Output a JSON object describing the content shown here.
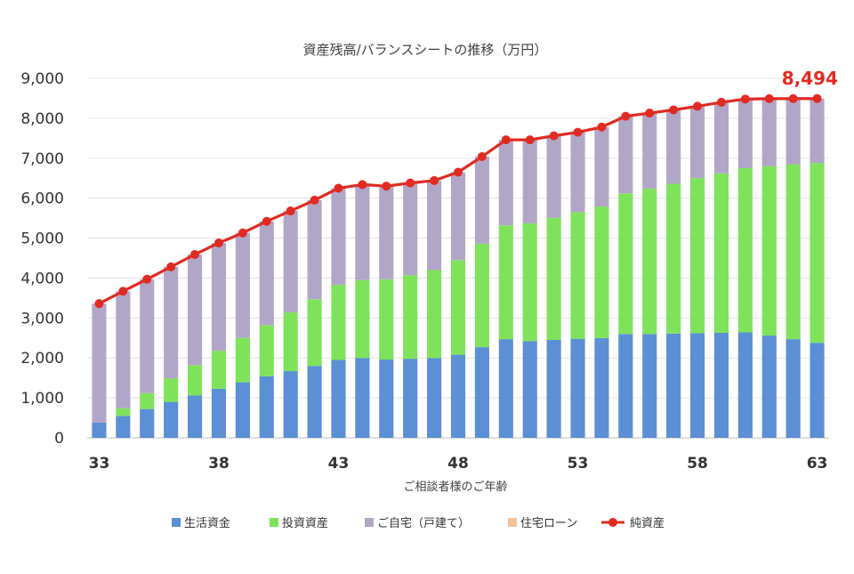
{
  "chart_data": {
    "type": "bar",
    "title": "資産残高/バランスシートの推移（万円）",
    "xlabel": "ご相談者様のご年齢",
    "ylabel": "",
    "ylim": [
      0,
      9000
    ],
    "yticks": [
      "0",
      "1,000",
      "2,000",
      "3,000",
      "4,000",
      "5,000",
      "6,000",
      "7,000",
      "8,000",
      "9,000"
    ],
    "ytick_values": [
      0,
      1000,
      2000,
      3000,
      4000,
      5000,
      6000,
      7000,
      8000,
      9000
    ],
    "categories": [
      33,
      34,
      35,
      36,
      37,
      38,
      39,
      40,
      41,
      42,
      43,
      44,
      45,
      46,
      47,
      48,
      49,
      50,
      51,
      52,
      53,
      54,
      55,
      56,
      57,
      58,
      59,
      60,
      61,
      62,
      63
    ],
    "xtick_labels": [
      "33",
      "38",
      "43",
      "48",
      "53",
      "58",
      "63"
    ],
    "grid": true,
    "legend_position": "bottom",
    "stacked": true,
    "series": [
      {
        "name": "生活資金",
        "kind": "bar",
        "color": "#5b8fd6",
        "values": [
          380,
          550,
          720,
          900,
          1060,
          1230,
          1390,
          1540,
          1670,
          1800,
          1950,
          2000,
          1960,
          1980,
          2000,
          2080,
          2270,
          2470,
          2420,
          2450,
          2480,
          2500,
          2600,
          2600,
          2610,
          2620,
          2630,
          2640,
          2560,
          2470,
          2380
        ]
      },
      {
        "name": "投資資産",
        "kind": "bar",
        "color": "#7ee35a",
        "values": [
          0,
          190,
          400,
          590,
          760,
          950,
          1110,
          1280,
          1470,
          1670,
          1880,
          1950,
          2010,
          2090,
          2200,
          2370,
          2590,
          2850,
          2950,
          3060,
          3170,
          3290,
          3520,
          3640,
          3750,
          3880,
          3990,
          4110,
          4240,
          4380,
          4500
        ]
      },
      {
        "name": "ご自宅（戸建て）",
        "kind": "bar",
        "color": "#b2a6c8",
        "values": [
          2980,
          2930,
          2850,
          2790,
          2770,
          2700,
          2630,
          2600,
          2540,
          2480,
          2420,
          2390,
          2330,
          2310,
          2240,
          2200,
          2180,
          2140,
          2090,
          2050,
          2000,
          1990,
          1930,
          1890,
          1850,
          1800,
          1780,
          1730,
          1690,
          1640,
          1614
        ]
      },
      {
        "name": "住宅ローン",
        "kind": "bar",
        "color": "#f4c29a",
        "values": [
          0,
          0,
          0,
          0,
          0,
          0,
          0,
          0,
          0,
          0,
          0,
          0,
          0,
          0,
          0,
          0,
          0,
          0,
          0,
          0,
          0,
          0,
          0,
          0,
          0,
          0,
          0,
          0,
          0,
          0,
          0
        ]
      },
      {
        "name": "純資産",
        "kind": "line",
        "color": "#e02b22",
        "values": [
          3360,
          3670,
          3970,
          4280,
          4590,
          4880,
          5130,
          5420,
          5680,
          5950,
          6250,
          6340,
          6300,
          6380,
          6440,
          6650,
          7040,
          7460,
          7460,
          7560,
          7650,
          7780,
          8050,
          8130,
          8210,
          8300,
          8400,
          8480,
          8490,
          8490,
          8494
        ]
      }
    ],
    "annotations": {
      "last_value_label": "8,494",
      "last_value_color": "#e02b22"
    }
  }
}
